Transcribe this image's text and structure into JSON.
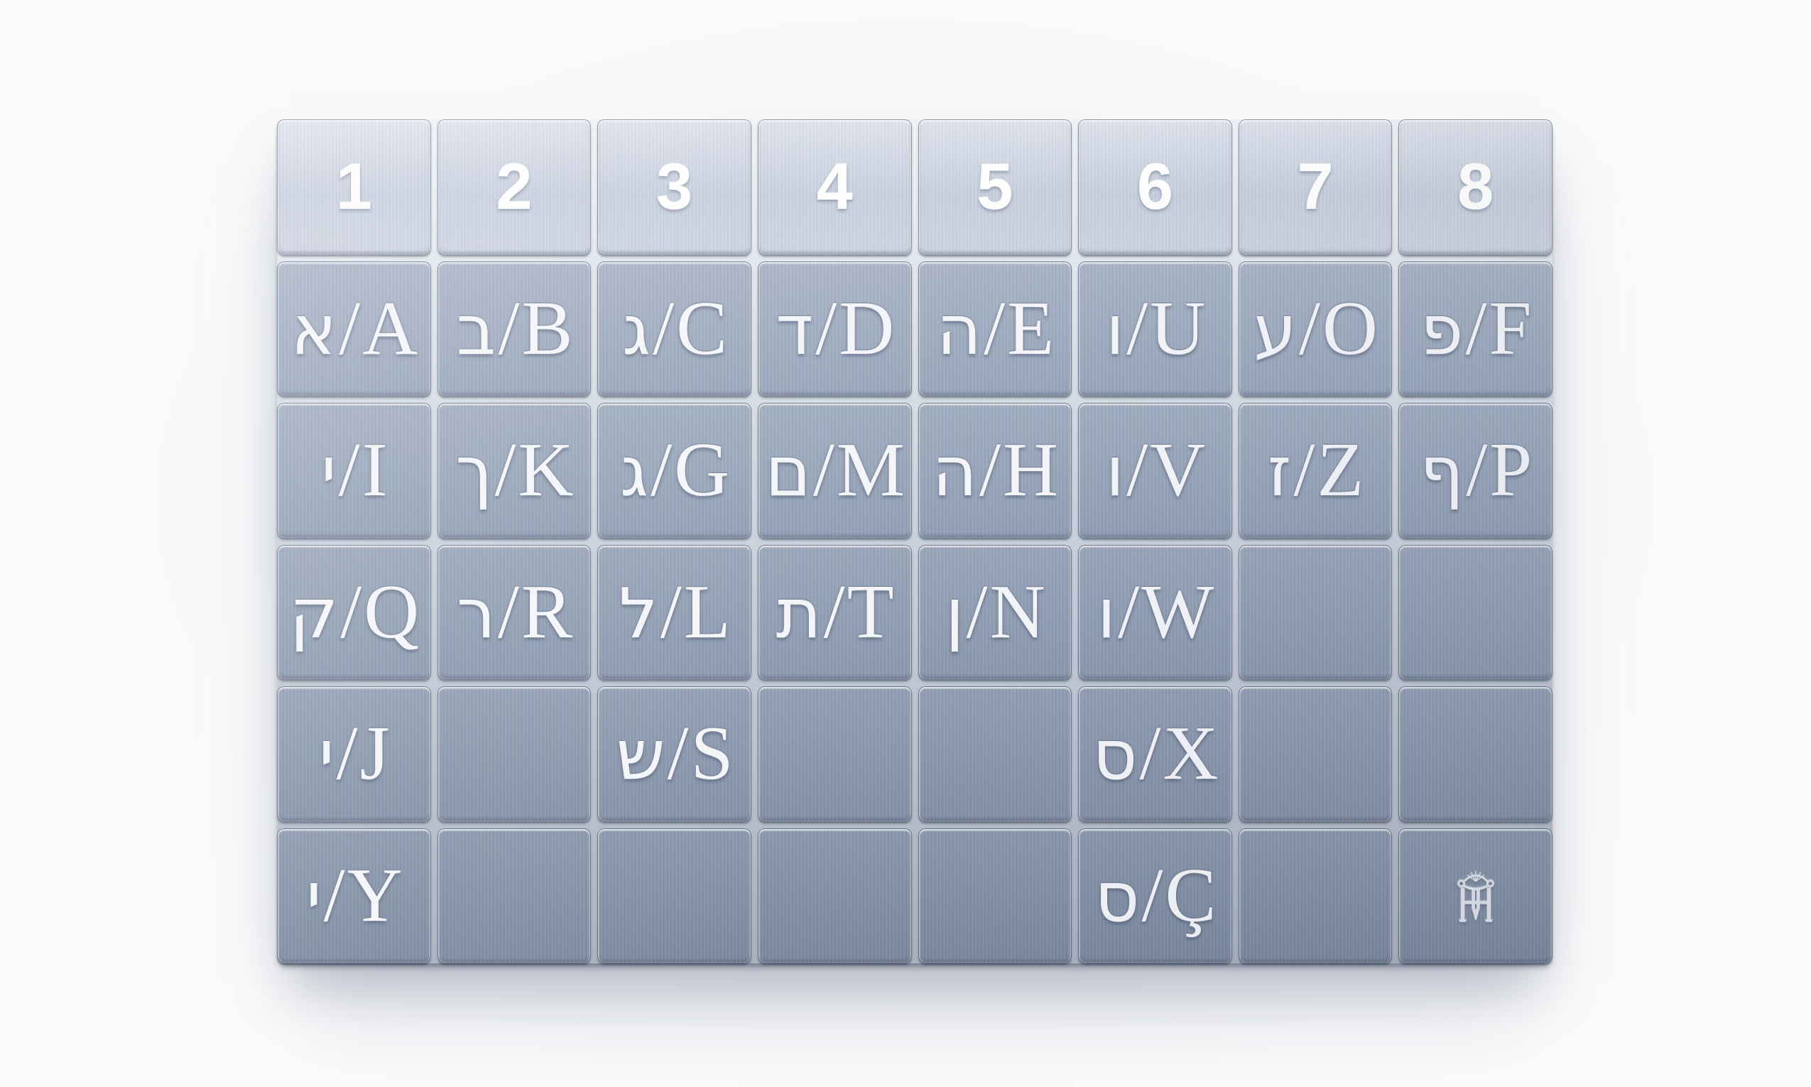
{
  "board": {
    "header": {
      "labels": [
        "1",
        "2",
        "3",
        "4",
        "5",
        "6",
        "7",
        "8"
      ]
    },
    "separator": "/",
    "rows": [
      {
        "cells": [
          {
            "he": "א",
            "lat": "A"
          },
          {
            "he": "ב",
            "lat": "B"
          },
          {
            "he": "ג",
            "lat": "C"
          },
          {
            "he": "ד",
            "lat": "D"
          },
          {
            "he": "ה",
            "lat": "E"
          },
          {
            "he": "ו",
            "lat": "U"
          },
          {
            "he": "ע",
            "lat": "O"
          },
          {
            "he": "פ",
            "lat": "F"
          }
        ]
      },
      {
        "cells": [
          {
            "he": "י",
            "lat": "I"
          },
          {
            "he": "ך",
            "lat": "K"
          },
          {
            "he": "ג",
            "lat": "G"
          },
          {
            "he": "ם",
            "lat": "M"
          },
          {
            "he": "ה",
            "lat": "H"
          },
          {
            "he": "ו",
            "lat": "V"
          },
          {
            "he": "ז",
            "lat": "Z"
          },
          {
            "he": "ף",
            "lat": "P"
          }
        ]
      },
      {
        "cells": [
          {
            "he": "ק",
            "lat": "Q"
          },
          {
            "he": "ר",
            "lat": "R"
          },
          {
            "he": "ל",
            "lat": "L"
          },
          {
            "he": "ת",
            "lat": "T"
          },
          {
            "he": "ן",
            "lat": "N"
          },
          {
            "he": "ו",
            "lat": "W"
          },
          null,
          null
        ]
      },
      {
        "cells": [
          {
            "he": "י",
            "lat": "J"
          },
          null,
          {
            "he": "ש",
            "lat": "S"
          },
          null,
          null,
          {
            "he": "ס",
            "lat": "X"
          },
          null,
          null
        ]
      },
      {
        "cells": [
          {
            "he": "י",
            "lat": "Y"
          },
          null,
          null,
          null,
          null,
          {
            "he": "ס",
            "lat": "Ç"
          },
          null,
          {
            "logo": "HH monogram"
          }
        ]
      }
    ],
    "colors": {
      "header_tile": "#cbd3e0",
      "letter_tile_top_row": "#9fabbe",
      "letter_tile_bottom_row": "#808da3",
      "engraved_text": "#f3f5f9",
      "page_background": "#f7f8f9"
    }
  }
}
